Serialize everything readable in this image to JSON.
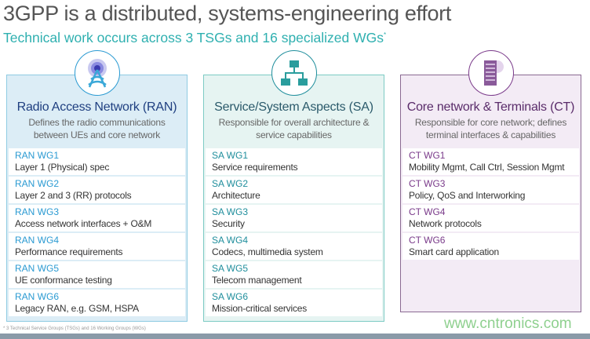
{
  "header": {
    "title": "3GPP is a distributed, systems-engineering effort",
    "subtitle": "Technical work occurs across 3 TSGs and 16 specialized WGs",
    "subtitle_mark": "*"
  },
  "groups": [
    {
      "icon": "radio-tower-icon",
      "title": "Radio Access Network (RAN)",
      "desc1": "Defines the radio communications",
      "desc2": "between UEs and core network",
      "wgs": [
        {
          "name": "RAN WG1",
          "desc": "Layer 1 (Physical) spec"
        },
        {
          "name": "RAN WG2",
          "desc": "Layer 2 and 3 (RR) protocols"
        },
        {
          "name": "RAN WG3",
          "desc": "Access network interfaces + O&M"
        },
        {
          "name": "RAN WG4",
          "desc": "Performance requirements"
        },
        {
          "name": "RAN WG5",
          "desc": "UE conformance testing"
        },
        {
          "name": "RAN WG6",
          "desc": "Legacy RAN, e.g. GSM, HSPA"
        }
      ]
    },
    {
      "icon": "network-hierarchy-icon",
      "title": "Service/System Aspects (SA)",
      "desc1": "Responsible for overall architecture &",
      "desc2": "service capabilities",
      "wgs": [
        {
          "name": "SA WG1",
          "desc": "Service requirements"
        },
        {
          "name": "SA WG2",
          "desc": "Architecture"
        },
        {
          "name": "SA WG3",
          "desc": "Security"
        },
        {
          "name": "SA WG4",
          "desc": "Codecs, multimedia system"
        },
        {
          "name": "SA WG5",
          "desc": "Telecom management"
        },
        {
          "name": "SA WG6",
          "desc": "Mission-critical services"
        }
      ]
    },
    {
      "icon": "server-cloud-icon",
      "title": "Core network & Terminals (CT)",
      "desc1": "Responsible for core network; defines",
      "desc2": "terminal interfaces & capabilities",
      "wgs": [
        {
          "name": "CT WG1",
          "desc": "Mobility Mgmt, Call Ctrl, Session Mgmt"
        },
        {
          "name": "CT WG3",
          "desc": "Policy, QoS and Interworking"
        },
        {
          "name": "CT WG4",
          "desc": "Network protocols"
        },
        {
          "name": "CT WG6",
          "desc": "Smart card application"
        }
      ]
    }
  ],
  "footnote": "* 3 Technical Service Groups (TSGs) and 16 Working Groups (WGs)",
  "watermark": "www.cntronics.com",
  "colors": {
    "ran": "#2a9ad2",
    "sa": "#1f8e9c",
    "ct": "#7a3a8a",
    "subtitle": "#2fb0b0"
  }
}
